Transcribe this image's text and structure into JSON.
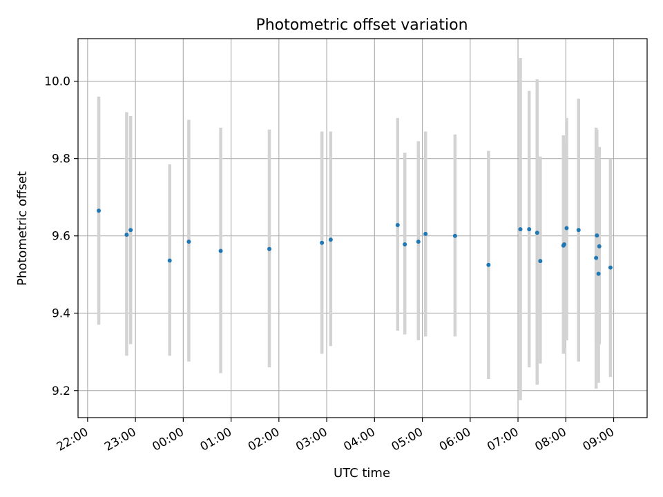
{
  "chart_data": {
    "type": "scatter",
    "title": "Photometric offset variation",
    "xlabel": "UTC time",
    "ylabel": "Photometric offset",
    "x_axis_kind": "time-of-day (crosses midnight)",
    "x_ticks": [
      "22:00",
      "23:00",
      "00:00",
      "01:00",
      "02:00",
      "03:00",
      "04:00",
      "05:00",
      "06:00",
      "07:00",
      "08:00",
      "09:00"
    ],
    "y_ticks": [
      "9.2",
      "9.4",
      "9.6",
      "9.8",
      "10.0"
    ],
    "xlim": [
      "21:48",
      "09:42"
    ],
    "ylim": [
      9.13,
      10.11
    ],
    "grid": true,
    "colors": {
      "point": "#1f77b4",
      "error_bar": "#d3d3d3",
      "grid": "#b0b0b0"
    },
    "series": [
      {
        "points": [
          {
            "x": "22:14",
            "y": 9.665,
            "yerr_low": 9.37,
            "yerr_high": 9.96
          },
          {
            "x": "22:49",
            "y": 9.603,
            "yerr_low": 9.29,
            "yerr_high": 9.92
          },
          {
            "x": "22:54",
            "y": 9.615,
            "yerr_low": 9.32,
            "yerr_high": 9.91
          },
          {
            "x": "23:43",
            "y": 9.536,
            "yerr_low": 9.29,
            "yerr_high": 9.785
          },
          {
            "x": "00:07",
            "y": 9.585,
            "yerr_low": 9.275,
            "yerr_high": 9.9
          },
          {
            "x": "00:47",
            "y": 9.561,
            "yerr_low": 9.245,
            "yerr_high": 9.88
          },
          {
            "x": "01:48",
            "y": 9.566,
            "yerr_low": 9.26,
            "yerr_high": 9.875
          },
          {
            "x": "02:54",
            "y": 9.582,
            "yerr_low": 9.295,
            "yerr_high": 9.87
          },
          {
            "x": "03:05",
            "y": 9.59,
            "yerr_low": 9.315,
            "yerr_high": 9.87
          },
          {
            "x": "04:29",
            "y": 9.628,
            "yerr_low": 9.355,
            "yerr_high": 9.905
          },
          {
            "x": "04:38",
            "y": 9.578,
            "yerr_low": 9.345,
            "yerr_high": 9.815
          },
          {
            "x": "04:55",
            "y": 9.585,
            "yerr_low": 9.33,
            "yerr_high": 9.845
          },
          {
            "x": "05:04",
            "y": 9.605,
            "yerr_low": 9.34,
            "yerr_high": 9.87
          },
          {
            "x": "05:41",
            "y": 9.6,
            "yerr_low": 9.34,
            "yerr_high": 9.862
          },
          {
            "x": "06:23",
            "y": 9.525,
            "yerr_low": 9.23,
            "yerr_high": 9.82
          },
          {
            "x": "07:03",
            "y": 9.617,
            "yerr_low": 9.175,
            "yerr_high": 10.06
          },
          {
            "x": "07:14",
            "y": 9.617,
            "yerr_low": 9.26,
            "yerr_high": 9.975
          },
          {
            "x": "07:24",
            "y": 9.608,
            "yerr_low": 9.215,
            "yerr_high": 10.005
          },
          {
            "x": "07:28",
            "y": 9.535,
            "yerr_low": 9.27,
            "yerr_high": 9.805
          },
          {
            "x": "07:57",
            "y": 9.575,
            "yerr_low": 9.295,
            "yerr_high": 9.86
          },
          {
            "x": "07:58",
            "y": 9.578,
            "yerr_low": 9.31,
            "yerr_high": 9.84
          },
          {
            "x": "08:01",
            "y": 9.62,
            "yerr_low": 9.33,
            "yerr_high": 9.905
          },
          {
            "x": "08:16",
            "y": 9.615,
            "yerr_low": 9.275,
            "yerr_high": 9.955
          },
          {
            "x": "08:38",
            "y": 9.543,
            "yerr_low": 9.205,
            "yerr_high": 9.88
          },
          {
            "x": "08:39",
            "y": 9.601,
            "yerr_low": 9.325,
            "yerr_high": 9.875
          },
          {
            "x": "08:41",
            "y": 9.502,
            "yerr_low": 9.22,
            "yerr_high": 9.785
          },
          {
            "x": "08:42",
            "y": 9.573,
            "yerr_low": 9.32,
            "yerr_high": 9.83
          },
          {
            "x": "08:56",
            "y": 9.518,
            "yerr_low": 9.235,
            "yerr_high": 9.8
          }
        ]
      }
    ]
  }
}
